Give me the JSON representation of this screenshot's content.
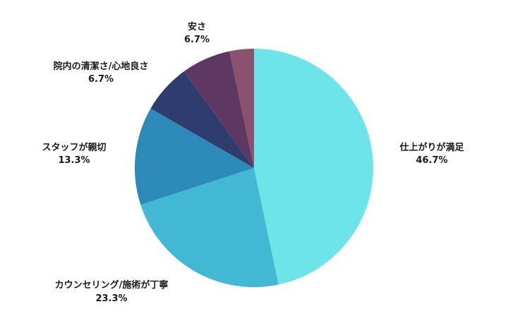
{
  "chart_data": {
    "type": "pie",
    "title": "",
    "start_angle_deg": 0,
    "direction": "clockwise",
    "slices": [
      {
        "label": "仕上がりが満足",
        "value": 46.7,
        "value_text": "46.7%",
        "color": "#6ce4e8"
      },
      {
        "label": "カウンセリング/施術が丁寧",
        "value": 23.3,
        "value_text": "23.3%",
        "color": "#43b8d4"
      },
      {
        "label": "スタッフが親切",
        "value": 13.3,
        "value_text": "13.3%",
        "color": "#2d89b8"
      },
      {
        "label": "院内の清潔さ/心地良さ",
        "value": 6.7,
        "value_text": "6.7%",
        "color": "#2e3c6e"
      },
      {
        "label": "安さ",
        "value": 6.7,
        "value_text": "6.7%",
        "color": "#5e3762"
      },
      {
        "label": "",
        "value": 3.3,
        "value_text": "",
        "color": "#8a526f"
      }
    ]
  }
}
